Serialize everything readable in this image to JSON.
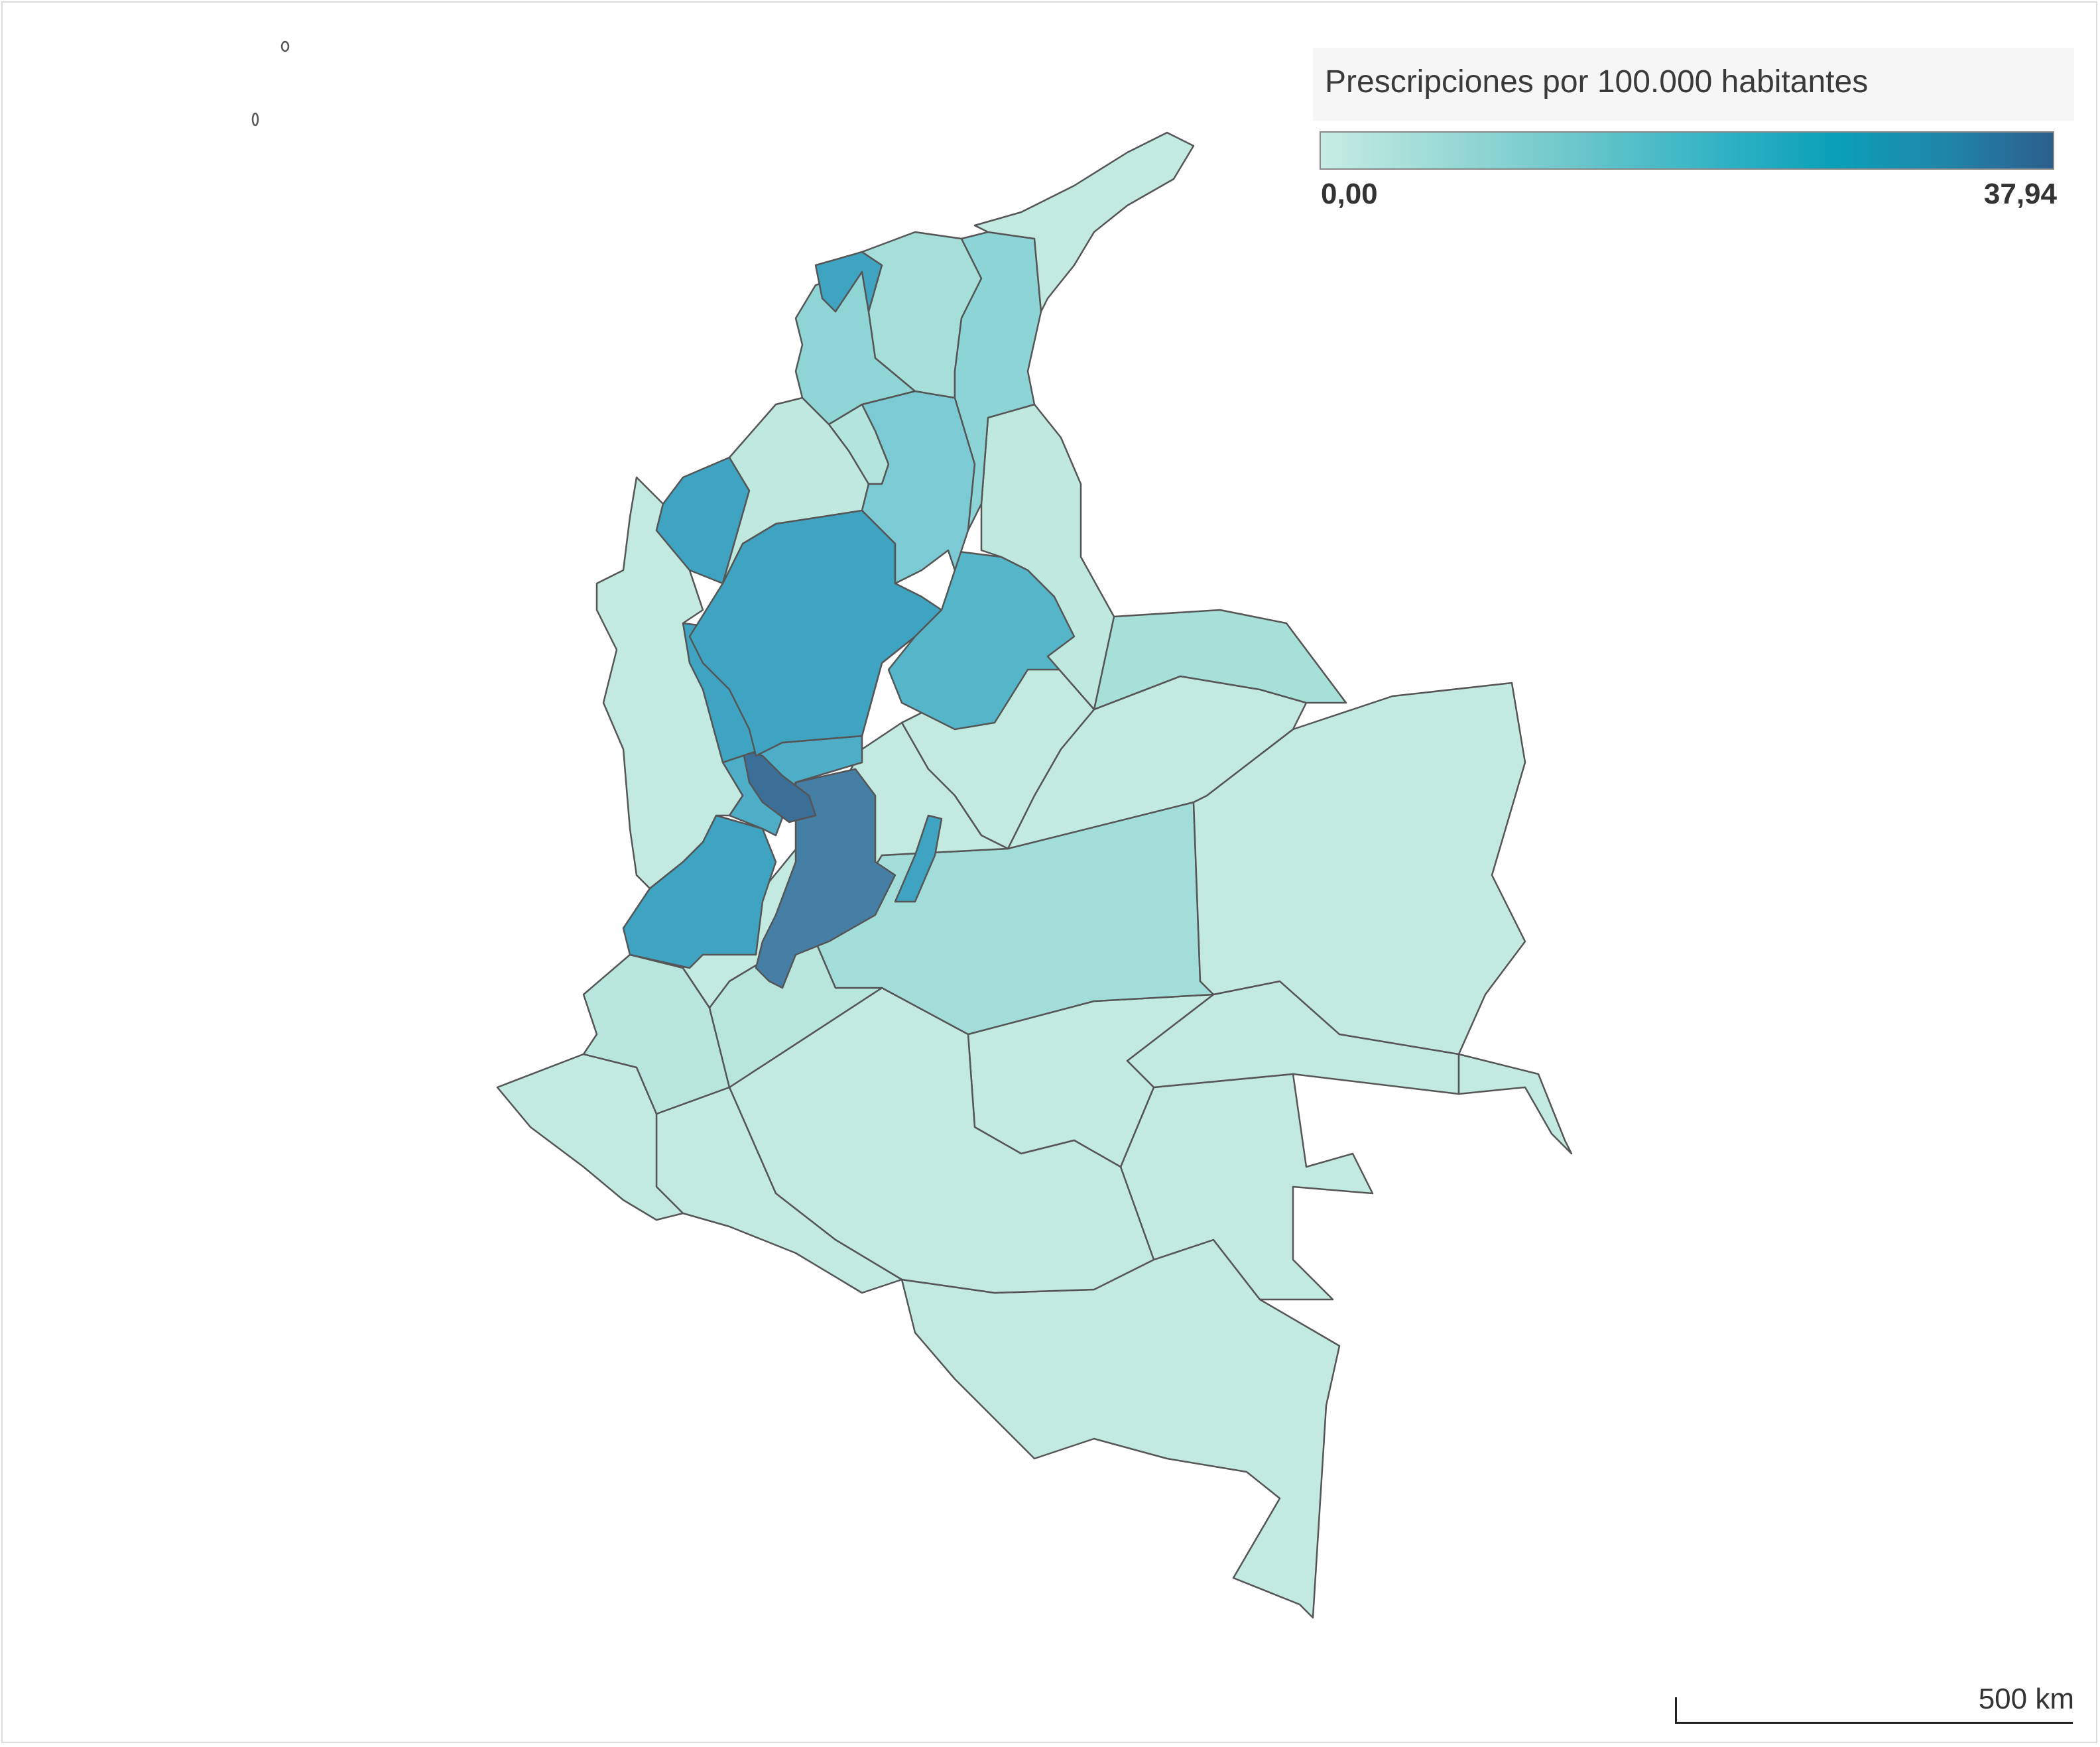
{
  "legend": {
    "title": "Prescripciones por 100.000 habitantes",
    "min_label": "0,00",
    "max_label": "37,94",
    "min_value": 0,
    "max_value": 37.94,
    "color_min": "#c7ece3",
    "color_max": "#2c5f8c"
  },
  "scale_bar": {
    "label": "500 km"
  },
  "map": {
    "country": "Colombia",
    "stroke_color": "#555555",
    "regions": [
      {
        "id": "guajira",
        "value": 0.5,
        "color": "#c2eae0"
      },
      {
        "id": "atlantico",
        "value": 24,
        "color": "#3ea4c2"
      },
      {
        "id": "magdalena",
        "value": 5,
        "color": "#a6dfda"
      },
      {
        "id": "cesar",
        "value": 7,
        "color": "#8dd4d6"
      },
      {
        "id": "bolivar-north",
        "value": 7,
        "color": "#8fd5d6"
      },
      {
        "id": "sucre",
        "value": 2,
        "color": "#b3e5dc"
      },
      {
        "id": "cordoba",
        "value": 1,
        "color": "#bfe9df"
      },
      {
        "id": "bolivar-south",
        "value": 12,
        "color": "#7ccbd4"
      },
      {
        "id": "norte-santander",
        "value": 2,
        "color": "#bfe9df"
      },
      {
        "id": "antioquia",
        "value": 23,
        "color": "#3ea4c2"
      },
      {
        "id": "uraba",
        "value": 23,
        "color": "#3ea4c2"
      },
      {
        "id": "santander",
        "value": 18,
        "color": "#55b6ca"
      },
      {
        "id": "choco",
        "value": 0.5,
        "color": "#c2eae0"
      },
      {
        "id": "caldas",
        "value": 22,
        "color": "#3ea4c2"
      },
      {
        "id": "risaralda",
        "value": 34,
        "color": "#3b6f98"
      },
      {
        "id": "quindio",
        "value": 20,
        "color": "#4eaec8"
      },
      {
        "id": "valle",
        "value": 23,
        "color": "#3ea4c2"
      },
      {
        "id": "tolima",
        "value": 30,
        "color": "#457fa6"
      },
      {
        "id": "cundinamarca",
        "value": 2,
        "color": "#c2eae0"
      },
      {
        "id": "bogota",
        "value": 22,
        "color": "#3ea4c2"
      },
      {
        "id": "boyaca",
        "value": 2,
        "color": "#c2eae0"
      },
      {
        "id": "arauca",
        "value": 4,
        "color": "#a7e0d8"
      },
      {
        "id": "casanare",
        "value": 1,
        "color": "#c2eae0"
      },
      {
        "id": "vichada",
        "value": 0.5,
        "color": "#c2eae0"
      },
      {
        "id": "meta",
        "value": 5,
        "color": "#a3ddda"
      },
      {
        "id": "cauca",
        "value": 1,
        "color": "#b8e6dd"
      },
      {
        "id": "huila",
        "value": 1,
        "color": "#b8e6dd"
      },
      {
        "id": "narino",
        "value": 0.5,
        "color": "#c2eae0"
      },
      {
        "id": "putumayo",
        "value": 0.5,
        "color": "#c2eae0"
      },
      {
        "id": "caqueta",
        "value": 0.5,
        "color": "#c2eae0"
      },
      {
        "id": "guaviare",
        "value": 0.5,
        "color": "#c2eae0"
      },
      {
        "id": "guainia",
        "value": 0.5,
        "color": "#c2eae0"
      },
      {
        "id": "vaupes",
        "value": 0.5,
        "color": "#c2eae0"
      },
      {
        "id": "amazonas",
        "value": 0.5,
        "color": "#c2eae0"
      }
    ]
  }
}
